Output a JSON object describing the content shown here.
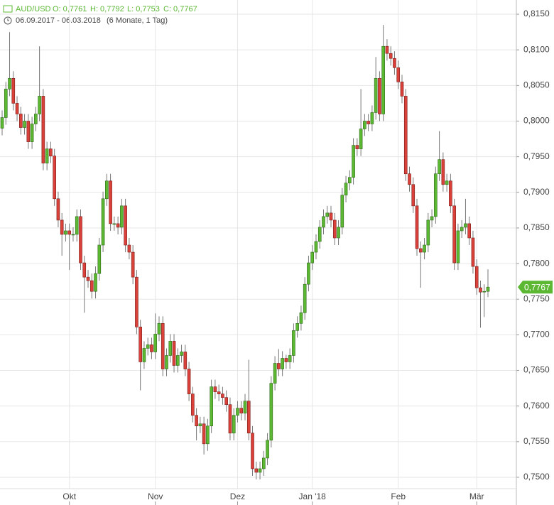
{
  "chart_data": {
    "type": "candlestick",
    "header": {
      "symbol": "AUD/USD",
      "open": "O: 0,7761",
      "high": "H: 0,7792",
      "low": "L: 0,7753",
      "close": "C: 0,7767",
      "range": "06.09.2017 - 06.03.2018",
      "period": "(6 Monate, 1 Tag)"
    },
    "up_color": "#5cb833",
    "down_color": "#d9413a",
    "grid": true,
    "ylim": [
      0.7492,
      0.817
    ],
    "yticks": [
      {
        "value": 0.75,
        "label": "0,7500"
      },
      {
        "value": 0.755,
        "label": "0,7550"
      },
      {
        "value": 0.76,
        "label": "0,7600"
      },
      {
        "value": 0.765,
        "label": "0,7650"
      },
      {
        "value": 0.77,
        "label": "0,7700"
      },
      {
        "value": 0.775,
        "label": "0,7750"
      },
      {
        "value": 0.78,
        "label": "0,7800"
      },
      {
        "value": 0.785,
        "label": "0,7850"
      },
      {
        "value": 0.79,
        "label": "0,7900"
      },
      {
        "value": 0.795,
        "label": "0,7950"
      },
      {
        "value": 0.8,
        "label": "0,8000"
      },
      {
        "value": 0.805,
        "label": "0,8050"
      },
      {
        "value": 0.81,
        "label": "0,8100"
      },
      {
        "value": 0.815,
        "label": "0,8150"
      }
    ],
    "last_price": {
      "value": 0.7767,
      "label": "0,7767"
    },
    "categories": [
      null,
      null,
      null,
      null,
      null,
      null,
      null,
      null,
      null,
      null,
      null,
      null,
      null,
      null,
      null,
      null,
      null,
      null,
      "Okt",
      null,
      null,
      null,
      null,
      null,
      null,
      null,
      null,
      null,
      null,
      null,
      null,
      null,
      null,
      null,
      null,
      null,
      null,
      null,
      null,
      null,
      null,
      "Nov",
      null,
      null,
      null,
      null,
      null,
      null,
      null,
      null,
      null,
      null,
      null,
      null,
      null,
      null,
      null,
      null,
      null,
      null,
      null,
      null,
      null,
      "Dez",
      null,
      null,
      null,
      null,
      null,
      null,
      null,
      null,
      null,
      null,
      null,
      null,
      null,
      null,
      null,
      null,
      null,
      null,
      null,
      "Jan '18",
      null,
      null,
      null,
      null,
      null,
      null,
      null,
      null,
      null,
      null,
      null,
      null,
      null,
      null,
      null,
      null,
      null,
      null,
      null,
      null,
      null,
      null,
      "Feb",
      null,
      null,
      null,
      null,
      null,
      null,
      null,
      null,
      null,
      null,
      null,
      null,
      null,
      null,
      null,
      null,
      null,
      null,
      null,
      null,
      "Mär",
      null,
      null,
      null
    ],
    "open": [
      0.799,
      0.8005,
      0.8045,
      0.806,
      0.8025,
      0.801,
      0.7991,
      0.8,
      0.7971,
      0.7996,
      0.801,
      0.8035,
      0.7941,
      0.7961,
      0.7951,
      0.7891,
      0.7861,
      0.7841,
      0.7846,
      0.7841,
      0.7841,
      0.7866,
      0.7801,
      0.7781,
      0.7776,
      0.7761,
      0.7786,
      0.7826,
      0.7891,
      0.7916,
      0.7856,
      0.7856,
      0.7851,
      0.7881,
      0.7826,
      0.7816,
      0.7781,
      0.7711,
      0.7662,
      0.7681,
      0.7686,
      0.7676,
      0.7701,
      0.7716,
      0.7652,
      0.7671,
      0.7691,
      0.7657,
      0.7671,
      0.7676,
      0.7652,
      0.7617,
      0.7587,
      0.7572,
      0.7575,
      0.7547,
      0.7572,
      0.7627,
      0.762,
      0.7617,
      0.7612,
      0.7602,
      0.7562,
      0.7587,
      0.7597,
      0.759,
      0.7607,
      0.7562,
      0.7512,
      0.7507,
      0.7512,
      0.7527,
      0.7552,
      0.7632,
      0.766,
      0.7652,
      0.7667,
      0.7662,
      0.7671,
      0.7706,
      0.7716,
      0.7731,
      0.7771,
      0.7801,
      0.7816,
      0.7831,
      0.7851,
      0.7866,
      0.7871,
      0.7861,
      0.7836,
      0.7851,
      0.7896,
      0.7913,
      0.7921,
      0.7966,
      0.7961,
      0.7989,
      0.8,
      0.7996,
      0.8012,
      0.806,
      0.801,
      0.8105,
      0.8095,
      0.8088,
      0.8075,
      0.8055,
      0.8035,
      0.7926,
      0.7911,
      0.7881,
      0.7821,
      0.7816,
      0.7826,
      0.7861,
      0.7866,
      0.7926,
      0.7946,
      0.7911,
      0.7916,
      0.7881,
      0.7801,
      0.7846,
      0.7851,
      0.7856,
      0.7836,
      0.7796,
      0.7766,
      0.776,
      0.7761
    ],
    "high": [
      0.8015,
      0.8055,
      0.8125,
      0.807,
      0.8035,
      0.802,
      0.801,
      0.801,
      0.8006,
      0.802,
      0.8105,
      0.8045,
      0.7971,
      0.7971,
      0.7961,
      0.7901,
      0.7871,
      0.7856,
      0.7856,
      0.7851,
      0.7876,
      0.7876,
      0.7811,
      0.7791,
      0.7786,
      0.7796,
      0.7836,
      0.7901,
      0.7926,
      0.7926,
      0.7866,
      0.7866,
      0.7891,
      0.7891,
      0.7836,
      0.7826,
      0.7791,
      0.7721,
      0.7691,
      0.7696,
      0.7696,
      0.773,
      0.7726,
      0.7726,
      0.7681,
      0.7701,
      0.7701,
      0.7681,
      0.7686,
      0.7686,
      0.7662,
      0.7627,
      0.7597,
      0.7585,
      0.7585,
      0.7582,
      0.7637,
      0.7637,
      0.763,
      0.7627,
      0.7622,
      0.7612,
      0.7597,
      0.7607,
      0.7607,
      0.7617,
      0.7665,
      0.7572,
      0.7522,
      0.7522,
      0.7537,
      0.7562,
      0.7642,
      0.767,
      0.768,
      0.7677,
      0.7672,
      0.7681,
      0.7716,
      0.7726,
      0.7741,
      0.7781,
      0.7811,
      0.7826,
      0.7841,
      0.7861,
      0.7876,
      0.7881,
      0.7881,
      0.7871,
      0.7861,
      0.7906,
      0.7923,
      0.7931,
      0.7976,
      0.7976,
      0.8045,
      0.801,
      0.801,
      0.8022,
      0.809,
      0.807,
      0.8135,
      0.8115,
      0.8105,
      0.8098,
      0.8085,
      0.8065,
      0.8045,
      0.7936,
      0.7921,
      0.7891,
      0.7831,
      0.7836,
      0.7871,
      0.7876,
      0.7936,
      0.7986,
      0.7956,
      0.7926,
      0.7926,
      0.7891,
      0.7856,
      0.7861,
      0.7891,
      0.7866,
      0.7846,
      0.7806,
      0.7776,
      0.7771,
      0.7792
    ],
    "low": [
      0.798,
      0.7995,
      0.8035,
      0.8015,
      0.8,
      0.7981,
      0.7981,
      0.7961,
      0.7961,
      0.7986,
      0.8,
      0.7931,
      0.7931,
      0.7941,
      0.7881,
      0.7851,
      0.7811,
      0.7831,
      0.7791,
      0.7831,
      0.7831,
      0.7791,
      0.7731,
      0.7766,
      0.7751,
      0.7751,
      0.7776,
      0.7816,
      0.7881,
      0.7846,
      0.7846,
      0.7841,
      0.7841,
      0.7816,
      0.7806,
      0.7771,
      0.7701,
      0.7622,
      0.7652,
      0.7671,
      0.7666,
      0.7666,
      0.7691,
      0.7642,
      0.7642,
      0.7661,
      0.7647,
      0.7647,
      0.7661,
      0.7642,
      0.7607,
      0.7577,
      0.7552,
      0.7562,
      0.7532,
      0.7537,
      0.7562,
      0.761,
      0.7607,
      0.7602,
      0.7592,
      0.7552,
      0.7552,
      0.7577,
      0.758,
      0.758,
      0.7552,
      0.7502,
      0.7497,
      0.7497,
      0.7502,
      0.7517,
      0.7542,
      0.7622,
      0.7642,
      0.7642,
      0.7652,
      0.7652,
      0.7661,
      0.7696,
      0.7706,
      0.7721,
      0.7761,
      0.7791,
      0.7806,
      0.7821,
      0.7841,
      0.7856,
      0.7851,
      0.7826,
      0.7826,
      0.7841,
      0.7886,
      0.7903,
      0.7911,
      0.7951,
      0.7951,
      0.7979,
      0.7986,
      0.7986,
      0.8002,
      0.8,
      0.8,
      0.8085,
      0.8078,
      0.8065,
      0.8045,
      0.8025,
      0.7916,
      0.7901,
      0.7871,
      0.7811,
      0.7766,
      0.7806,
      0.7816,
      0.7851,
      0.7856,
      0.7916,
      0.7901,
      0.7901,
      0.7871,
      0.7791,
      0.7791,
      0.7836,
      0.7841,
      0.7826,
      0.7786,
      0.7756,
      0.771,
      0.7725,
      0.7753
    ],
    "close": [
      0.8005,
      0.8045,
      0.806,
      0.8025,
      0.801,
      0.7991,
      0.8,
      0.7971,
      0.7996,
      0.801,
      0.8035,
      0.7941,
      0.7961,
      0.7951,
      0.7891,
      0.7861,
      0.7841,
      0.7846,
      0.7841,
      0.7841,
      0.7866,
      0.7801,
      0.7781,
      0.7776,
      0.7761,
      0.7786,
      0.7826,
      0.7891,
      0.7916,
      0.7856,
      0.7856,
      0.7851,
      0.7881,
      0.7826,
      0.7816,
      0.7781,
      0.7711,
      0.7662,
      0.7681,
      0.7686,
      0.7676,
      0.7701,
      0.7716,
      0.7652,
      0.7671,
      0.7691,
      0.7657,
      0.7671,
      0.7676,
      0.7652,
      0.7617,
      0.7587,
      0.7572,
      0.7575,
      0.7547,
      0.7572,
      0.7627,
      0.762,
      0.7617,
      0.7612,
      0.7602,
      0.7562,
      0.7587,
      0.7597,
      0.759,
      0.7607,
      0.7562,
      0.7512,
      0.7507,
      0.7512,
      0.7527,
      0.7552,
      0.7632,
      0.766,
      0.7652,
      0.7667,
      0.7662,
      0.7671,
      0.7706,
      0.7716,
      0.7731,
      0.7771,
      0.7801,
      0.7816,
      0.7831,
      0.7851,
      0.7866,
      0.7871,
      0.7861,
      0.7836,
      0.7851,
      0.7896,
      0.7913,
      0.7921,
      0.7966,
      0.7961,
      0.7989,
      0.8,
      0.7996,
      0.8012,
      0.806,
      0.801,
      0.8105,
      0.8095,
      0.8088,
      0.8075,
      0.8055,
      0.8035,
      0.7926,
      0.7911,
      0.7881,
      0.7821,
      0.7816,
      0.7826,
      0.7861,
      0.7866,
      0.7926,
      0.7946,
      0.7911,
      0.7916,
      0.7881,
      0.7801,
      0.7846,
      0.7851,
      0.7856,
      0.7836,
      0.7796,
      0.7766,
      0.776,
      0.7761,
      0.7767
    ]
  }
}
